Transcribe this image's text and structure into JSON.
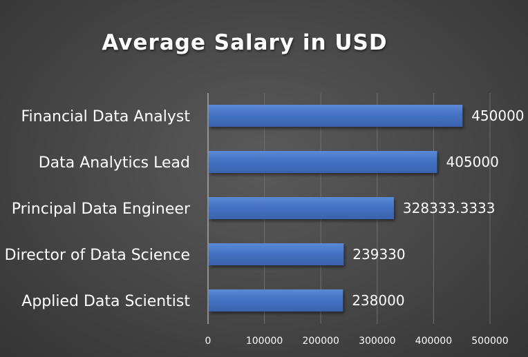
{
  "chart_data": {
    "type": "bar",
    "orientation": "horizontal",
    "title": "Average Salary in USD",
    "xlabel": "",
    "ylabel": "",
    "categories": [
      "Financial Data Analyst",
      "Data Analytics Lead",
      "Principal Data Engineer",
      "Director of Data Science",
      "Applied Data Scientist"
    ],
    "values": [
      450000,
      405000,
      328333.3333,
      239330,
      238000
    ],
    "value_labels": [
      "450000",
      "405000",
      "328333.3333",
      "239330",
      "238000"
    ],
    "xlim": [
      0,
      500000
    ],
    "x_ticks": [
      0,
      100000,
      200000,
      300000,
      400000,
      500000
    ],
    "x_tick_labels": [
      "0",
      "100000",
      "200000",
      "300000",
      "400000",
      "500000"
    ],
    "grid": "vertical",
    "legend": "none",
    "colors": {
      "bar": "#4472c4",
      "bar_light": "#5b8ad6",
      "bar_dark": "#3a62ad",
      "text": "#ffffff",
      "gridline": "#6e6e6e",
      "axis": "#bfbfbf"
    }
  }
}
